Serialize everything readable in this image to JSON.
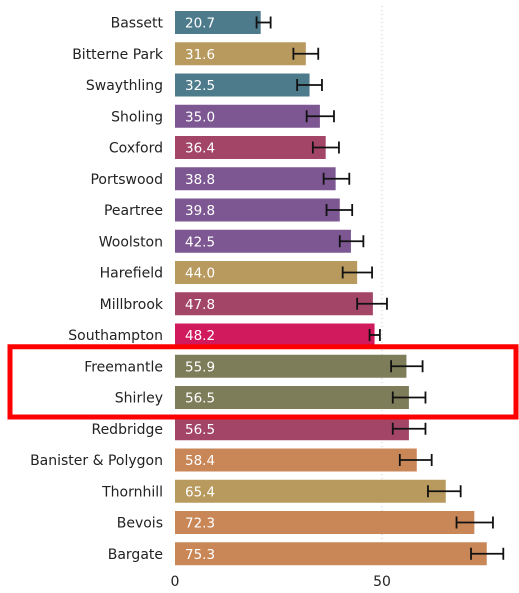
{
  "chart_data": {
    "type": "bar",
    "orientation": "horizontal",
    "title": "",
    "xlabel": "",
    "ylabel": "",
    "xlim": [
      0,
      80
    ],
    "x_ticks": [
      0,
      50
    ],
    "grid": "vertical dotted at ticks",
    "legend": "none",
    "error_bars": true,
    "categories": [
      "Bassett",
      "Bitterne Park",
      "Swaythling",
      "Sholing",
      "Coxford",
      "Portswood",
      "Peartree",
      "Woolston",
      "Harefield",
      "Millbrook",
      "Southampton",
      "Freemantle",
      "Shirley",
      "Redbridge",
      "Banister & Polygon",
      "Thornhill",
      "Bevois",
      "Bargate"
    ],
    "values": [
      20.7,
      31.6,
      32.5,
      35.0,
      36.4,
      38.8,
      39.8,
      42.5,
      44.0,
      47.8,
      48.2,
      55.9,
      56.5,
      56.5,
      58.4,
      65.4,
      72.3,
      75.3
    ],
    "error_low": [
      19.7,
      28.6,
      29.5,
      31.8,
      33.3,
      35.9,
      36.6,
      39.8,
      40.5,
      44.0,
      47.0,
      52.2,
      52.6,
      52.6,
      54.3,
      61.1,
      68.0,
      71.5
    ],
    "error_high": [
      23.1,
      34.6,
      35.5,
      38.4,
      39.6,
      42.1,
      42.8,
      45.5,
      47.6,
      51.2,
      49.5,
      59.8,
      60.5,
      60.5,
      62.0,
      69.0,
      76.8,
      79.3
    ],
    "colors": [
      "#4e7b8c",
      "#b89a5e",
      "#4e7b8c",
      "#7d5792",
      "#a34566",
      "#7d5792",
      "#7d5792",
      "#7d5792",
      "#b89a5e",
      "#a34566",
      "#d1195e",
      "#7d7d5a",
      "#7d7d5a",
      "#a34566",
      "#c98758",
      "#b89a5e",
      "#c98758",
      "#c98758"
    ],
    "highlight": {
      "categories": [
        "Freemantle",
        "Shirley"
      ],
      "color": "#ff0000"
    }
  }
}
